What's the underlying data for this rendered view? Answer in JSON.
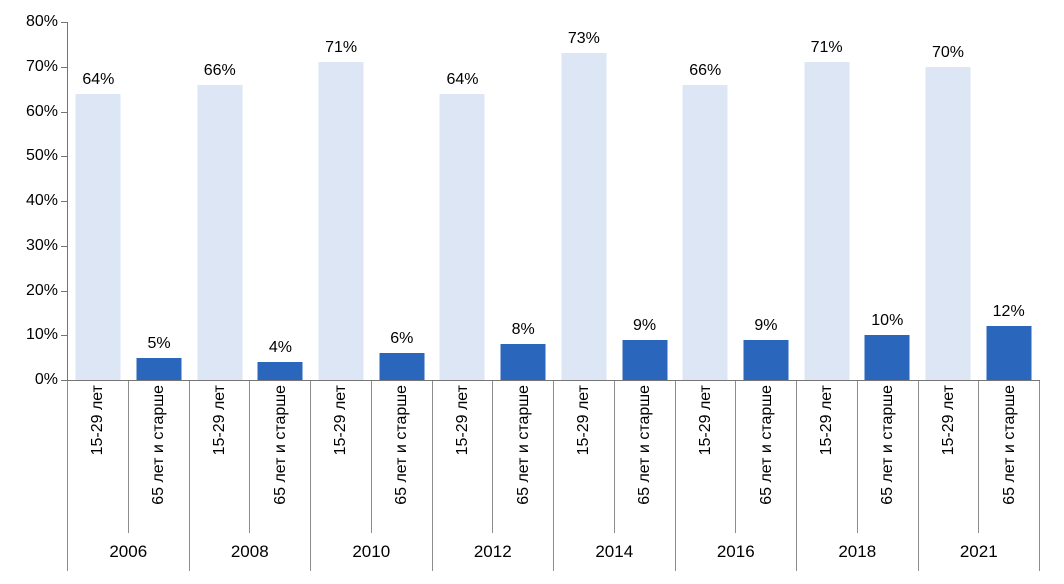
{
  "chart_data": {
    "type": "bar",
    "title": "",
    "xlabel": "",
    "ylabel": "",
    "categories": [
      "2006",
      "2008",
      "2010",
      "2012",
      "2014",
      "2016",
      "2018",
      "2021"
    ],
    "series": [
      {
        "name": "15-29 лет",
        "color": "#dde6f4",
        "values": [
          64,
          66,
          71,
          64,
          73,
          66,
          71,
          70
        ],
        "labels": [
          "64%",
          "66%",
          "71%",
          "64%",
          "73%",
          "66%",
          "71%",
          "70%"
        ]
      },
      {
        "name": "65 лет и старше",
        "color": "#2b66bd",
        "values": [
          5,
          4,
          6,
          8,
          9,
          9,
          10,
          12
        ],
        "labels": [
          "5%",
          "4%",
          "6%",
          "8%",
          "9%",
          "9%",
          "10%",
          "12%"
        ]
      }
    ],
    "ylim": [
      0,
      80
    ],
    "y_ticks": [
      0,
      10,
      20,
      30,
      40,
      50,
      60,
      70,
      80
    ],
    "y_tick_labels": [
      "0%",
      "10%",
      "20%",
      "30%",
      "40%",
      "50%",
      "60%",
      "70%",
      "80%"
    ],
    "grid": false,
    "legend_position": "none",
    "colors": {
      "axis_line": "#757575",
      "separator_line": "#8c8c8c",
      "text": "#000000",
      "background": "#ffffff"
    }
  }
}
